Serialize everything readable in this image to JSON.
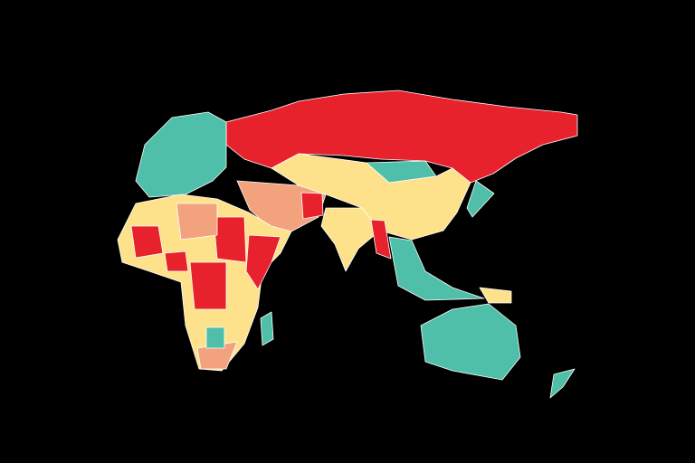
{
  "map": {
    "projection": "world-map-eastern-hemisphere",
    "background": "#000000",
    "border_color": "#ffffff",
    "category_colors": {
      "red": "#e8222c",
      "salmon": "#f2a37e",
      "yellow": "#fde28b",
      "teal": "#4fbfa9"
    },
    "regions": [
      {
        "name": "russia",
        "category": "red"
      },
      {
        "name": "europe",
        "category": "teal"
      },
      {
        "name": "mongolia",
        "category": "teal"
      },
      {
        "name": "china-central-asia",
        "category": "yellow"
      },
      {
        "name": "middle-east",
        "category": "salmon"
      },
      {
        "name": "afghanistan",
        "category": "red"
      },
      {
        "name": "india",
        "category": "yellow"
      },
      {
        "name": "myanmar",
        "category": "red"
      },
      {
        "name": "southeast-asia",
        "category": "teal"
      },
      {
        "name": "africa",
        "category": "yellow"
      },
      {
        "name": "sahel-west",
        "category": "red"
      },
      {
        "name": "sudan",
        "category": "red"
      },
      {
        "name": "congo",
        "category": "red"
      },
      {
        "name": "nigeria",
        "category": "red"
      },
      {
        "name": "somalia-ethiopia",
        "category": "red"
      },
      {
        "name": "chad-niger",
        "category": "salmon"
      },
      {
        "name": "south-africa",
        "category": "salmon"
      },
      {
        "name": "madagascar",
        "category": "teal"
      },
      {
        "name": "botswana",
        "category": "teal"
      },
      {
        "name": "australia",
        "category": "teal"
      },
      {
        "name": "new-zealand",
        "category": "teal"
      },
      {
        "name": "japan",
        "category": "teal"
      },
      {
        "name": "papua-new-guinea",
        "category": "yellow"
      }
    ]
  }
}
